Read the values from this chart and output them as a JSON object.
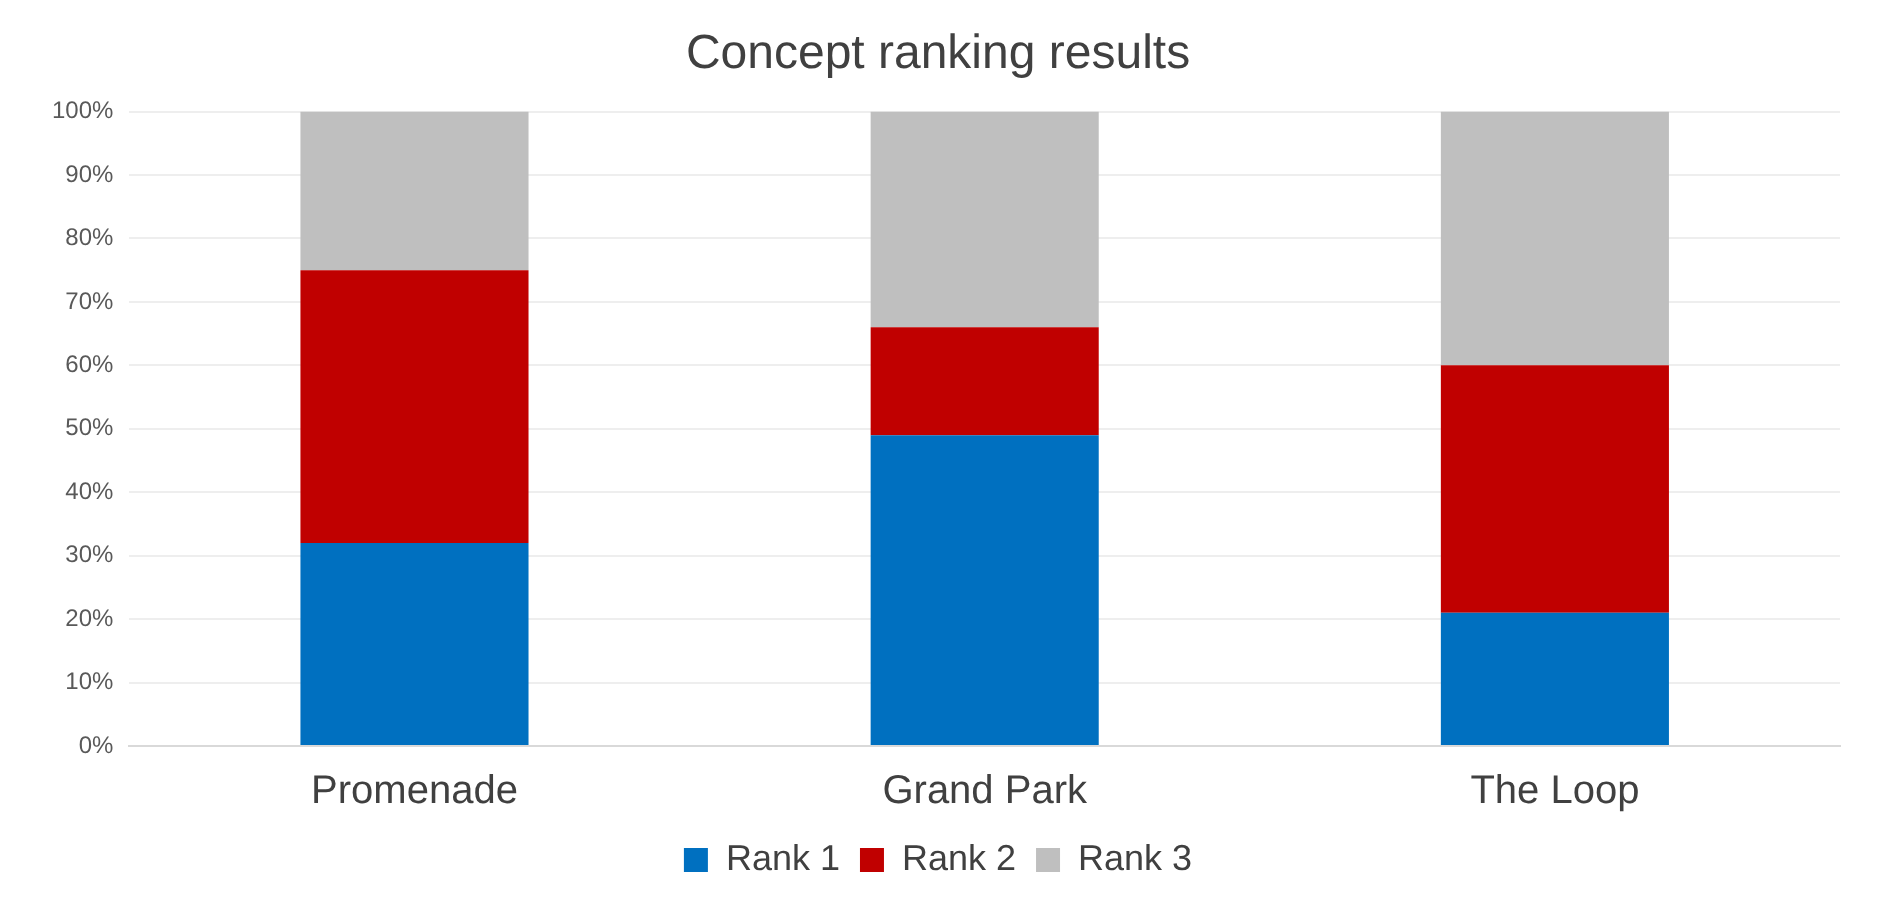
{
  "chart_data": {
    "type": "bar",
    "title": "Concept ranking results",
    "stacked": true,
    "categories": [
      "Promenade",
      "Grand Park",
      "The Loop"
    ],
    "series": [
      {
        "name": "Rank 1",
        "color": "#0070c0",
        "values": [
          32,
          49,
          21
        ]
      },
      {
        "name": "Rank 2",
        "color": "#c00000",
        "values": [
          43,
          17,
          39
        ]
      },
      {
        "name": "Rank 3",
        "color": "#bfbfbf",
        "values": [
          25,
          34,
          40
        ]
      }
    ],
    "ylim": [
      0,
      100
    ],
    "yticks": [
      {
        "value": 0,
        "label": "0%"
      },
      {
        "value": 10,
        "label": "10%"
      },
      {
        "value": 20,
        "label": "20%"
      },
      {
        "value": 30,
        "label": "30%"
      },
      {
        "value": 40,
        "label": "40%"
      },
      {
        "value": 50,
        "label": "50%"
      },
      {
        "value": 60,
        "label": "60%"
      },
      {
        "value": 70,
        "label": "70%"
      },
      {
        "value": 80,
        "label": "80%"
      },
      {
        "value": 90,
        "label": "90%"
      },
      {
        "value": 100,
        "label": "100%"
      }
    ],
    "grid": "y",
    "legend": "bottom"
  }
}
